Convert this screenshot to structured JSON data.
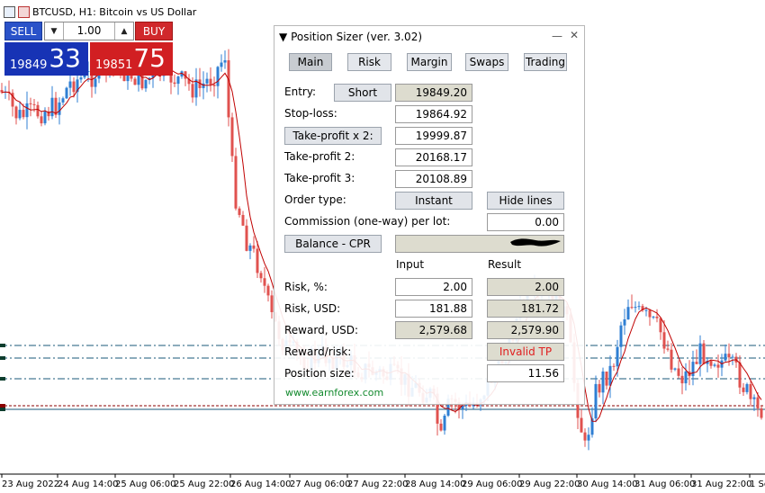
{
  "chart": {
    "symbol_title": "BTCUSD, H1:  Bitcoin vs US Dollar",
    "x_labels": [
      "23 Aug 2022",
      "24 Aug 14:00",
      "25 Aug 06:00",
      "25 Aug 22:00",
      "26 Aug 14:00",
      "27 Aug 06:00",
      "27 Aug 22:00",
      "28 Aug 14:00",
      "29 Aug 06:00",
      "29 Aug 22:00",
      "30 Aug 14:00",
      "31 Aug 06:00",
      "31 Aug 22:00",
      "1 Se"
    ],
    "colors": {
      "bull": "#2f7fd3",
      "bear": "#e0524f",
      "ma": "#c00000",
      "level": "#1a5a7a"
    }
  },
  "trade_panel": {
    "sell_label": "SELL",
    "buy_label": "BUY",
    "lot": "1.00",
    "sell_small": "19849",
    "sell_big": "33",
    "buy_small": "19851",
    "buy_big": "75"
  },
  "position_sizer": {
    "title": "Position Sizer (ver. 3.02)",
    "collapse_icon": "▼",
    "tabs": [
      "Main",
      "Risk",
      "Margin",
      "Swaps",
      "Trading"
    ],
    "entry_label": "Entry:",
    "entry_direction": "Short",
    "entry_value": "19849.20",
    "stoploss_label": "Stop-loss:",
    "stoploss_value": "19864.92",
    "tp_button": "Take-profit x 2:",
    "tp1_value": "19999.87",
    "tp2_label": "Take-profit 2:",
    "tp2_value": "20168.17",
    "tp3_label": "Take-profit 3:",
    "tp3_value": "20108.89",
    "order_type_label": "Order type:",
    "order_type_value": "Instant",
    "hide_lines": "Hide lines",
    "commission_label": "Commission (one-way) per lot:",
    "commission_value": "0.00",
    "balance_button": "Balance - CPR",
    "input_header": "Input",
    "result_header": "Result",
    "risk_pct_label": "Risk, %:",
    "risk_pct_input": "2.00",
    "risk_pct_result": "2.00",
    "risk_usd_label": "Risk, USD:",
    "risk_usd_input": "181.88",
    "risk_usd_result": "181.72",
    "reward_label": "Reward, USD:",
    "reward_input": "2,579.68",
    "reward_result": "2,579.90",
    "rr_label": "Reward/risk:",
    "rr_result": "Invalid TP",
    "possize_label": "Position size:",
    "possize_value": "11.56",
    "site_link": "www.earnforex.com"
  }
}
